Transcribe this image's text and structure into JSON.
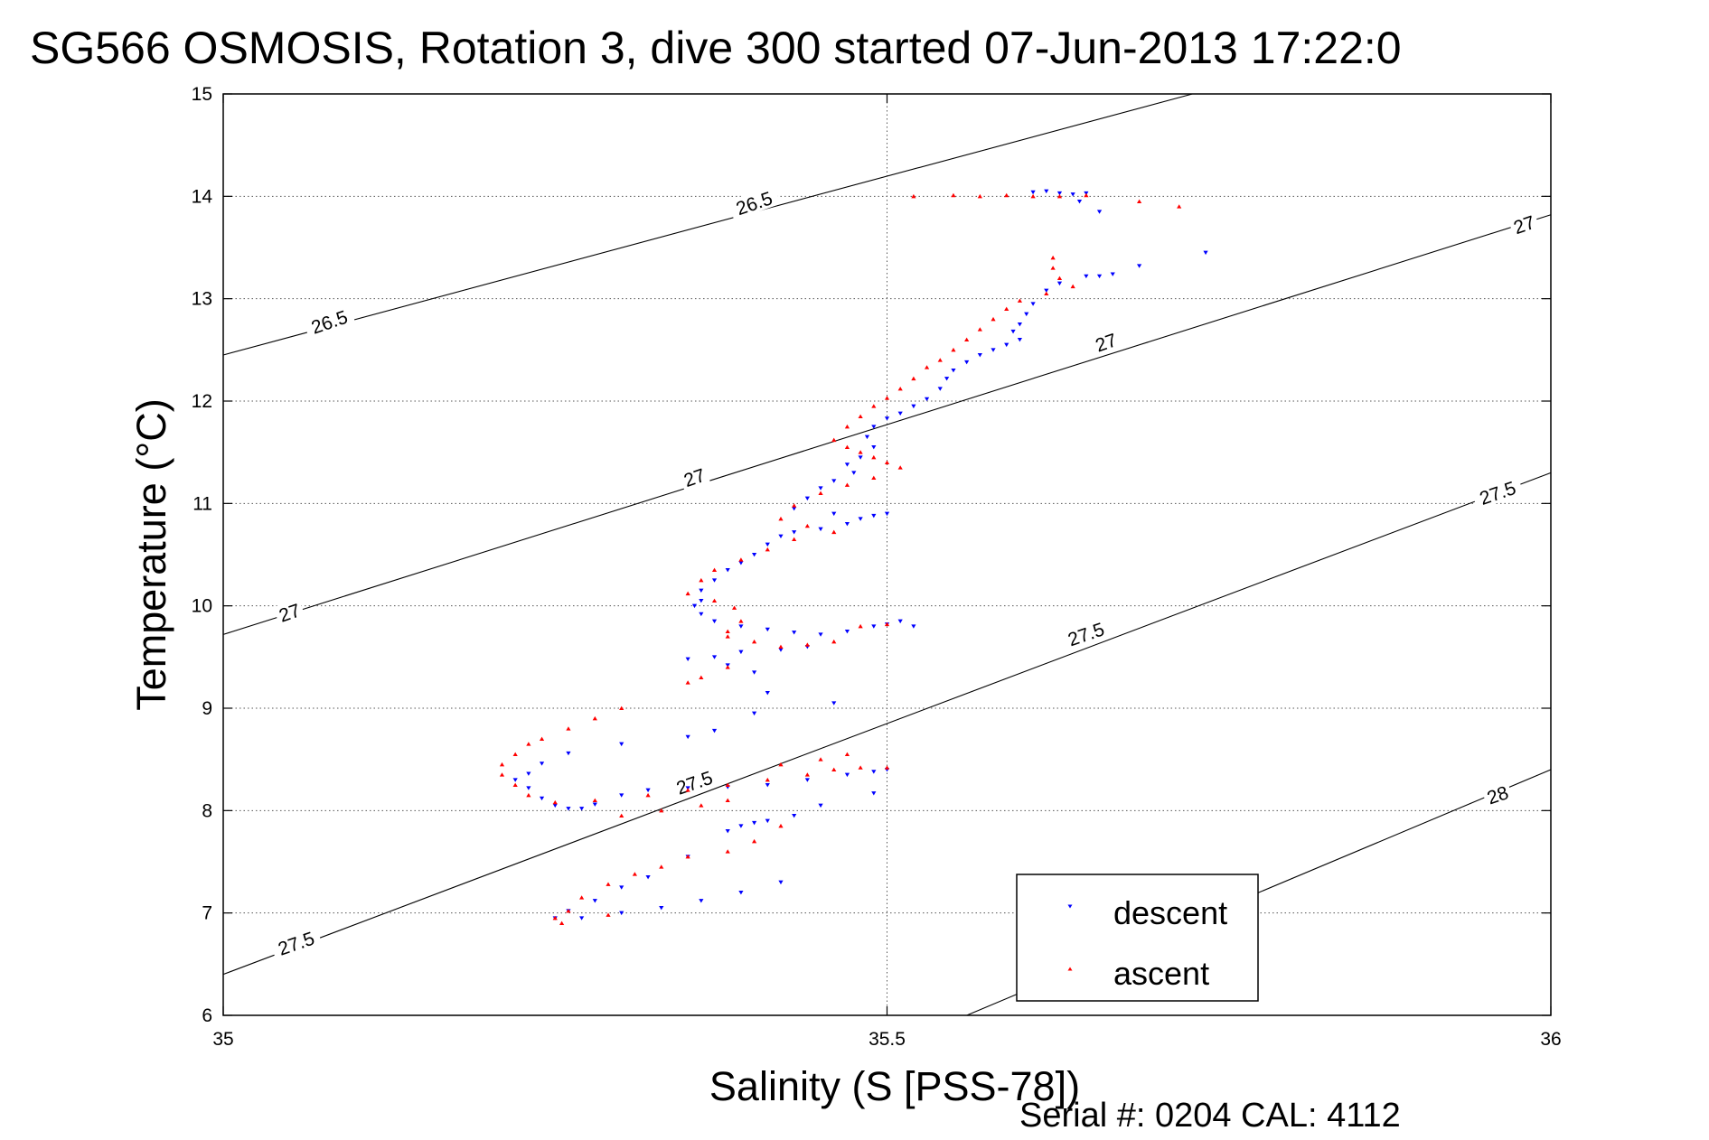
{
  "chart_data": {
    "type": "scatter",
    "title": "SG566 OSMOSIS, Rotation 3, dive 300 started 07-Jun-2013 17:22:0",
    "xlabel": "Salinity (S [PSS-78])",
    "ylabel": "Temperature (°C)",
    "xlim": [
      35,
      36
    ],
    "ylim": [
      6,
      15
    ],
    "xticks": [
      "35",
      "35.5",
      "36"
    ],
    "yticks": [
      "6",
      "7",
      "8",
      "9",
      "10",
      "11",
      "12",
      "13",
      "14",
      "15"
    ],
    "grid": true,
    "legend_position": "bottom-right",
    "footer": "Serial #: 0204  CAL: 4112",
    "density_contours": [
      {
        "label": "26.5",
        "line": [
          [
            35.0,
            12.45
          ],
          [
            35.73,
            15.0
          ]
        ]
      },
      {
        "label": "27",
        "line": [
          [
            35.0,
            9.72
          ],
          [
            36.0,
            13.82
          ]
        ]
      },
      {
        "label": "27.5",
        "line": [
          [
            35.0,
            6.4
          ],
          [
            36.0,
            11.3
          ]
        ]
      },
      {
        "label": "28",
        "line": [
          [
            35.56,
            6.0
          ],
          [
            36.0,
            8.4
          ]
        ]
      }
    ],
    "contour_labels": [
      {
        "text": "26.5",
        "x": 35.08,
        "y": 12.77
      },
      {
        "text": "26.5",
        "x": 35.4,
        "y": 13.93
      },
      {
        "text": "27",
        "x": 35.05,
        "y": 9.93
      },
      {
        "text": "27",
        "x": 35.355,
        "y": 11.25
      },
      {
        "text": "27",
        "x": 35.665,
        "y": 12.57
      },
      {
        "text": "27",
        "x": 35.98,
        "y": 13.72
      },
      {
        "text": "27.5",
        "x": 35.055,
        "y": 6.7
      },
      {
        "text": "27.5",
        "x": 35.355,
        "y": 8.27
      },
      {
        "text": "27.5",
        "x": 35.65,
        "y": 9.72
      },
      {
        "text": "27.5",
        "x": 35.96,
        "y": 11.1
      },
      {
        "text": "28",
        "x": 35.96,
        "y": 8.15
      }
    ],
    "series": [
      {
        "name": "descent",
        "color": "#0000ff",
        "marker": "triangle-down",
        "points": [
          [
            35.61,
            14.04
          ],
          [
            35.62,
            14.05
          ],
          [
            35.63,
            14.03
          ],
          [
            35.64,
            14.02
          ],
          [
            35.65,
            14.03
          ],
          [
            35.645,
            13.95
          ],
          [
            35.66,
            13.85
          ],
          [
            35.74,
            13.45
          ],
          [
            35.69,
            13.32
          ],
          [
            35.67,
            13.24
          ],
          [
            35.66,
            13.22
          ],
          [
            35.65,
            13.22
          ],
          [
            35.63,
            13.15
          ],
          [
            35.62,
            13.08
          ],
          [
            35.61,
            12.95
          ],
          [
            35.605,
            12.85
          ],
          [
            35.6,
            12.75
          ],
          [
            35.595,
            12.68
          ],
          [
            35.6,
            12.6
          ],
          [
            35.59,
            12.55
          ],
          [
            35.58,
            12.5
          ],
          [
            35.57,
            12.45
          ],
          [
            35.56,
            12.38
          ],
          [
            35.55,
            12.3
          ],
          [
            35.545,
            12.22
          ],
          [
            35.54,
            12.12
          ],
          [
            35.53,
            12.02
          ],
          [
            35.52,
            11.95
          ],
          [
            35.51,
            11.88
          ],
          [
            35.5,
            11.83
          ],
          [
            35.49,
            11.75
          ],
          [
            35.485,
            11.65
          ],
          [
            35.49,
            11.55
          ],
          [
            35.48,
            11.45
          ],
          [
            35.47,
            11.38
          ],
          [
            35.475,
            11.3
          ],
          [
            35.46,
            11.22
          ],
          [
            35.45,
            11.15
          ],
          [
            35.44,
            11.05
          ],
          [
            35.43,
            10.95
          ],
          [
            35.46,
            10.9
          ],
          [
            35.48,
            10.85
          ],
          [
            35.49,
            10.88
          ],
          [
            35.5,
            10.9
          ],
          [
            35.47,
            10.8
          ],
          [
            35.45,
            10.75
          ],
          [
            35.43,
            10.72
          ],
          [
            35.42,
            10.68
          ],
          [
            35.41,
            10.6
          ],
          [
            35.4,
            10.5
          ],
          [
            35.39,
            10.42
          ],
          [
            35.38,
            10.35
          ],
          [
            35.37,
            10.25
          ],
          [
            35.36,
            10.15
          ],
          [
            35.36,
            10.05
          ],
          [
            35.355,
            10.0
          ],
          [
            35.36,
            9.92
          ],
          [
            35.37,
            9.85
          ],
          [
            35.39,
            9.8
          ],
          [
            35.41,
            9.77
          ],
          [
            35.43,
            9.74
          ],
          [
            35.45,
            9.72
          ],
          [
            35.47,
            9.75
          ],
          [
            35.49,
            9.8
          ],
          [
            35.5,
            9.82
          ],
          [
            35.51,
            9.85
          ],
          [
            35.52,
            9.8
          ],
          [
            35.44,
            9.6
          ],
          [
            35.42,
            9.57
          ],
          [
            35.39,
            9.55
          ],
          [
            35.37,
            9.5
          ],
          [
            35.35,
            9.48
          ],
          [
            35.38,
            9.42
          ],
          [
            35.4,
            9.35
          ],
          [
            35.46,
            9.05
          ],
          [
            35.41,
            9.15
          ],
          [
            35.4,
            8.95
          ],
          [
            35.37,
            8.78
          ],
          [
            35.35,
            8.72
          ],
          [
            35.3,
            8.65
          ],
          [
            35.26,
            8.56
          ],
          [
            35.24,
            8.46
          ],
          [
            35.23,
            8.36
          ],
          [
            35.22,
            8.3
          ],
          [
            35.23,
            8.22
          ],
          [
            35.24,
            8.12
          ],
          [
            35.25,
            8.05
          ],
          [
            35.26,
            8.02
          ],
          [
            35.27,
            8.02
          ],
          [
            35.28,
            8.06
          ],
          [
            35.3,
            8.15
          ],
          [
            35.32,
            8.2
          ],
          [
            35.35,
            8.22
          ],
          [
            35.38,
            8.23
          ],
          [
            35.41,
            8.25
          ],
          [
            35.44,
            8.3
          ],
          [
            35.47,
            8.35
          ],
          [
            35.49,
            8.38
          ],
          [
            35.5,
            8.4
          ],
          [
            35.49,
            8.17
          ],
          [
            35.45,
            8.05
          ],
          [
            35.43,
            7.95
          ],
          [
            35.41,
            7.9
          ],
          [
            35.4,
            7.88
          ],
          [
            35.39,
            7.85
          ],
          [
            35.38,
            7.8
          ],
          [
            35.35,
            7.55
          ],
          [
            35.32,
            7.35
          ],
          [
            35.3,
            7.25
          ],
          [
            35.28,
            7.12
          ],
          [
            35.26,
            7.02
          ],
          [
            35.25,
            6.95
          ],
          [
            35.27,
            6.95
          ],
          [
            35.3,
            7.0
          ],
          [
            35.33,
            7.05
          ],
          [
            35.36,
            7.12
          ],
          [
            35.39,
            7.2
          ],
          [
            35.42,
            7.3
          ]
        ]
      },
      {
        "name": "ascent",
        "color": "#ff0000",
        "marker": "triangle-up",
        "points": [
          [
            35.52,
            14.0
          ],
          [
            35.55,
            14.01
          ],
          [
            35.57,
            14.0
          ],
          [
            35.59,
            14.01
          ],
          [
            35.61,
            14.0
          ],
          [
            35.63,
            14.0
          ],
          [
            35.65,
            14.01
          ],
          [
            35.69,
            13.95
          ],
          [
            35.72,
            13.9
          ],
          [
            35.625,
            13.4
          ],
          [
            35.625,
            13.3
          ],
          [
            35.63,
            13.2
          ],
          [
            35.64,
            13.12
          ],
          [
            35.62,
            13.05
          ],
          [
            35.6,
            12.98
          ],
          [
            35.59,
            12.9
          ],
          [
            35.58,
            12.8
          ],
          [
            35.57,
            12.7
          ],
          [
            35.56,
            12.6
          ],
          [
            35.55,
            12.5
          ],
          [
            35.54,
            12.4
          ],
          [
            35.53,
            12.33
          ],
          [
            35.52,
            12.22
          ],
          [
            35.51,
            12.12
          ],
          [
            35.5,
            12.03
          ],
          [
            35.49,
            11.95
          ],
          [
            35.48,
            11.85
          ],
          [
            35.47,
            11.75
          ],
          [
            35.46,
            11.62
          ],
          [
            35.47,
            11.55
          ],
          [
            35.48,
            11.5
          ],
          [
            35.49,
            11.45
          ],
          [
            35.5,
            11.4
          ],
          [
            35.51,
            11.35
          ],
          [
            35.49,
            11.25
          ],
          [
            35.47,
            11.18
          ],
          [
            35.45,
            11.1
          ],
          [
            35.43,
            10.98
          ],
          [
            35.42,
            10.85
          ],
          [
            35.44,
            10.78
          ],
          [
            35.46,
            10.72
          ],
          [
            35.43,
            10.65
          ],
          [
            35.41,
            10.55
          ],
          [
            35.39,
            10.45
          ],
          [
            35.37,
            10.35
          ],
          [
            35.36,
            10.25
          ],
          [
            35.35,
            10.12
          ],
          [
            35.37,
            10.05
          ],
          [
            35.385,
            9.98
          ],
          [
            35.39,
            9.85
          ],
          [
            35.38,
            9.75
          ],
          [
            35.38,
            9.7
          ],
          [
            35.4,
            9.65
          ],
          [
            35.42,
            9.6
          ],
          [
            35.44,
            9.62
          ],
          [
            35.46,
            9.65
          ],
          [
            35.48,
            9.8
          ],
          [
            35.5,
            9.82
          ],
          [
            35.38,
            9.4
          ],
          [
            35.36,
            9.3
          ],
          [
            35.35,
            9.25
          ],
          [
            35.3,
            9.0
          ],
          [
            35.28,
            8.9
          ],
          [
            35.26,
            8.8
          ],
          [
            35.24,
            8.7
          ],
          [
            35.23,
            8.65
          ],
          [
            35.22,
            8.55
          ],
          [
            35.21,
            8.45
          ],
          [
            35.21,
            8.35
          ],
          [
            35.22,
            8.25
          ],
          [
            35.23,
            8.15
          ],
          [
            35.25,
            8.08
          ],
          [
            35.28,
            8.1
          ],
          [
            35.32,
            8.15
          ],
          [
            35.35,
            8.2
          ],
          [
            35.38,
            8.25
          ],
          [
            35.41,
            8.3
          ],
          [
            35.44,
            8.35
          ],
          [
            35.46,
            8.4
          ],
          [
            35.48,
            8.42
          ],
          [
            35.5,
            8.42
          ],
          [
            35.47,
            8.55
          ],
          [
            35.45,
            8.5
          ],
          [
            35.42,
            8.45
          ],
          [
            35.38,
            8.1
          ],
          [
            35.36,
            8.05
          ],
          [
            35.33,
            8.0
          ],
          [
            35.3,
            7.95
          ],
          [
            35.42,
            7.85
          ],
          [
            35.4,
            7.7
          ],
          [
            35.38,
            7.6
          ],
          [
            35.35,
            7.55
          ],
          [
            35.33,
            7.45
          ],
          [
            35.31,
            7.38
          ],
          [
            35.29,
            7.28
          ],
          [
            35.27,
            7.15
          ],
          [
            35.26,
            7.02
          ],
          [
            35.25,
            6.95
          ],
          [
            35.255,
            6.9
          ],
          [
            35.29,
            6.98
          ]
        ]
      }
    ]
  }
}
